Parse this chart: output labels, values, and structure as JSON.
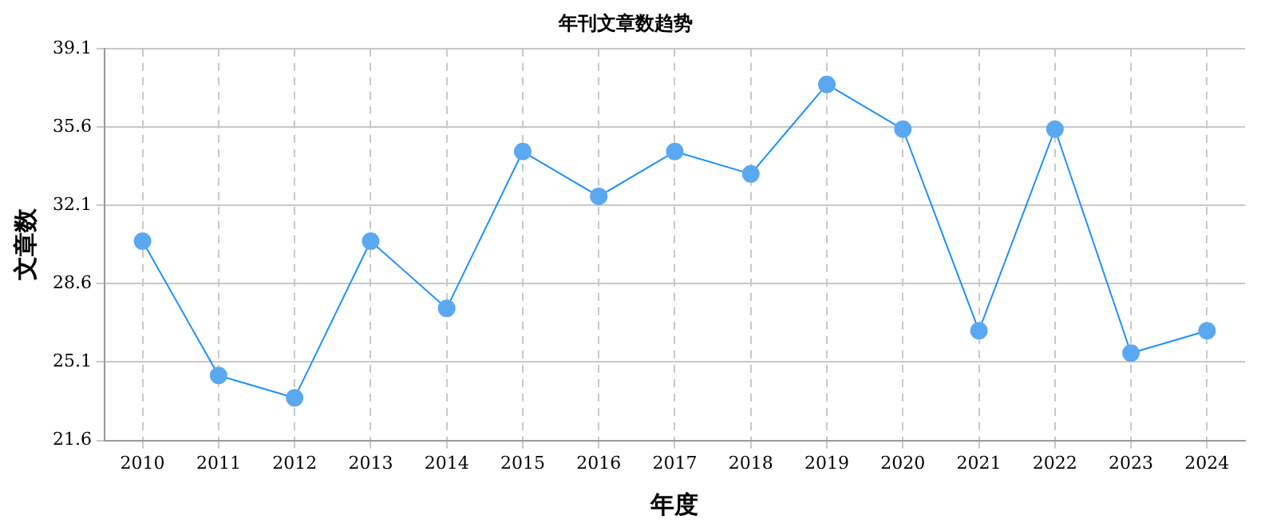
{
  "chart_data": {
    "type": "line",
    "title": "年刊文章数趋势",
    "xlabel": "年度",
    "ylabel": "文章数",
    "categories": [
      "2010",
      "2011",
      "2012",
      "2013",
      "2014",
      "2015",
      "2016",
      "2017",
      "2018",
      "2019",
      "2020",
      "2021",
      "2022",
      "2023",
      "2024"
    ],
    "series": [
      {
        "color": "#1e90ff",
        "values": [
          30.5,
          24.5,
          23.5,
          30.5,
          27.5,
          34.5,
          32.5,
          34.5,
          33.5,
          37.5,
          35.5,
          26.5,
          35.5,
          25.5,
          26.5
        ]
      }
    ],
    "ylim": [
      21.6,
      39.1
    ],
    "yticks": [
      21.6,
      25.1,
      28.6,
      32.1,
      35.6,
      39.1
    ],
    "grid": true,
    "legend": false,
    "marker": "circle",
    "line_style": "solid"
  }
}
